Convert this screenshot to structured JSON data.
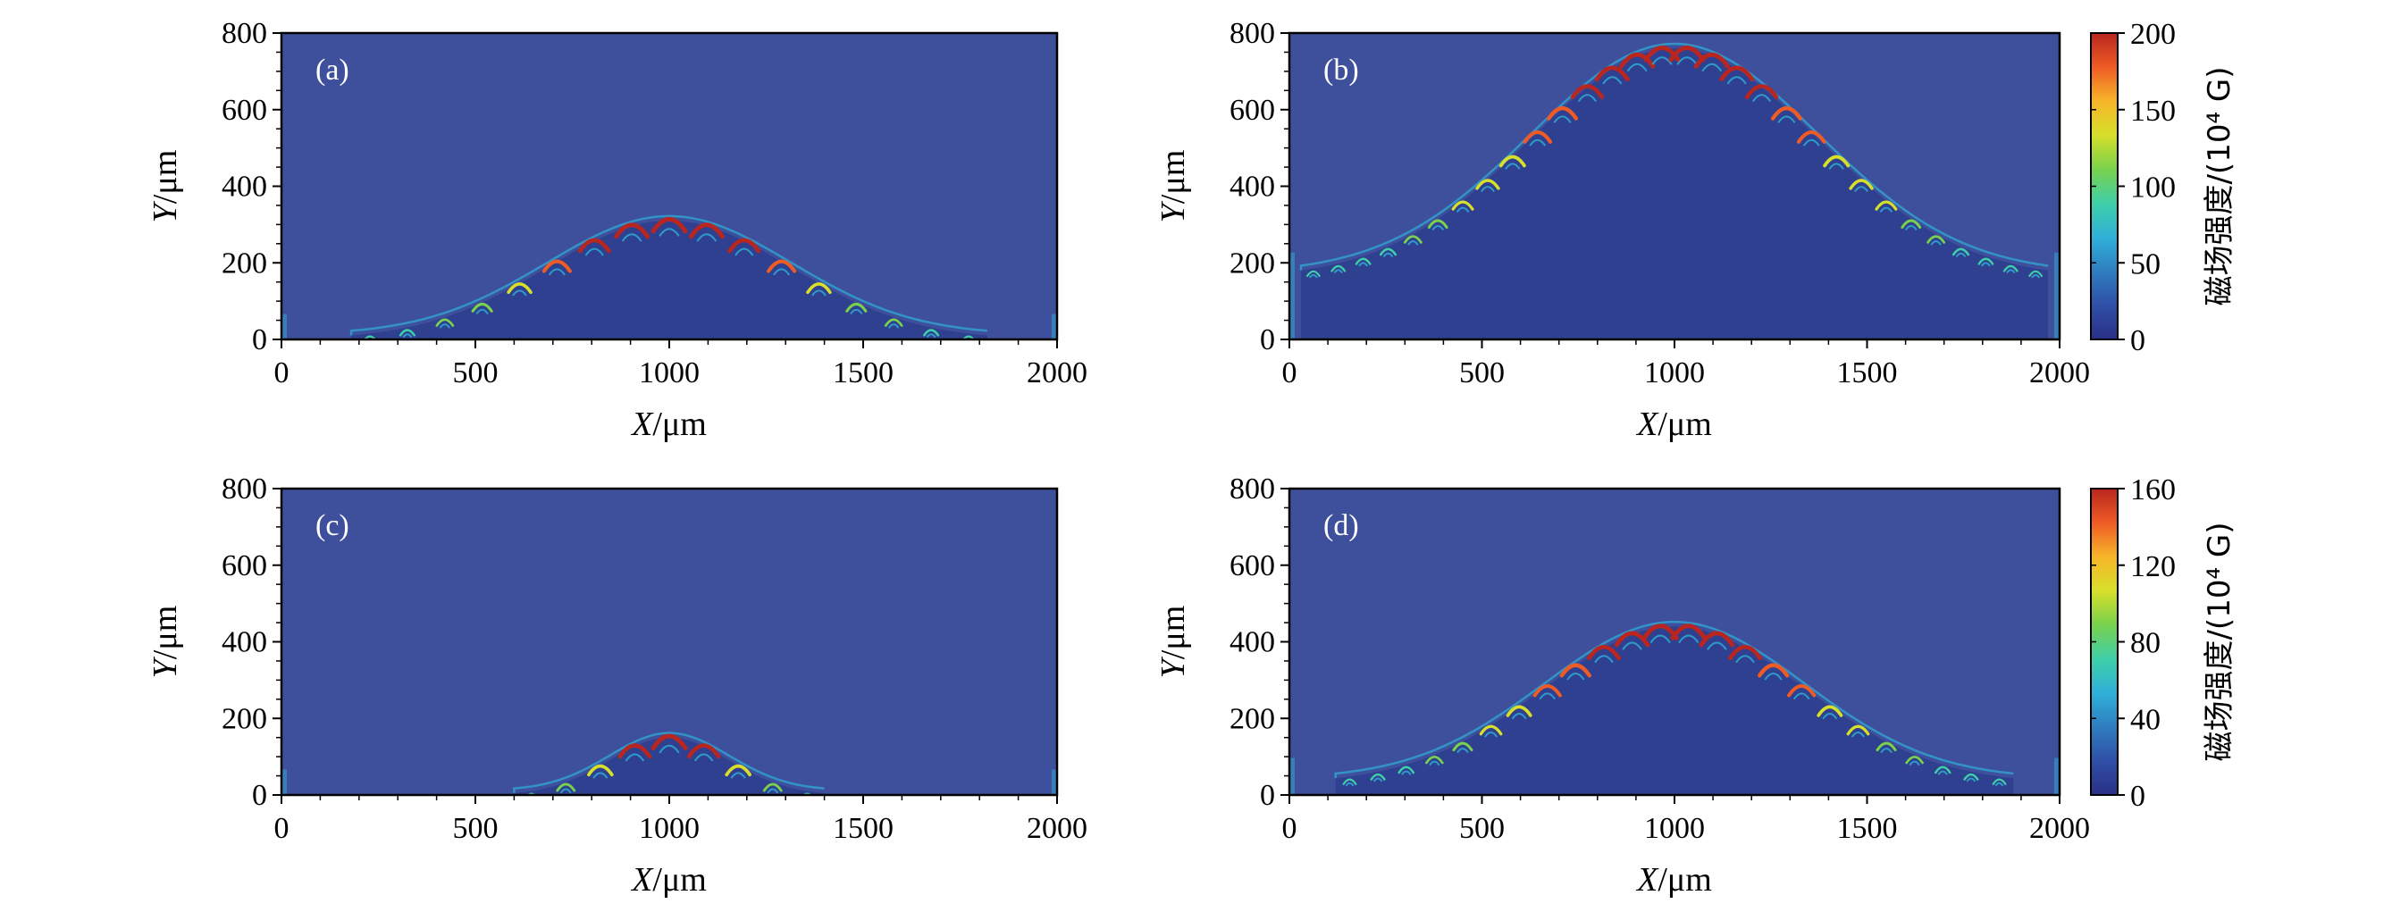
{
  "colors": {
    "background": "#3e4f9c",
    "frame": "#000000",
    "panel_label": "#ffffff",
    "colormap": [
      "#2b2f86",
      "#2f4fa6",
      "#2f7dbf",
      "#2fb0d8",
      "#3fcfa8",
      "#79d14d",
      "#d7df2a",
      "#f7b529",
      "#ef5b25",
      "#b8261f"
    ]
  },
  "chart_data": [
    {
      "panel": "(a)",
      "type": "heatmap",
      "xlabel_var": "X",
      "xlabel_unit": "/μm",
      "ylabel_var": "Y",
      "ylabel_unit": "/μm",
      "xlim": [
        0,
        2000
      ],
      "ylim": [
        0,
        800
      ],
      "xticks": [
        "0",
        "500",
        "1000",
        "1500",
        "2000"
      ],
      "yticks": [
        "0",
        "200",
        "400",
        "600",
        "800"
      ],
      "front": {
        "peak_y": 310,
        "base_y": 0,
        "left_x": 180,
        "right_x": 1820,
        "n_vortices": 17
      },
      "vmax": 200
    },
    {
      "panel": "(b)",
      "type": "heatmap",
      "xlabel_var": "X",
      "xlabel_unit": "/μm",
      "ylabel_var": "Y",
      "ylabel_unit": "/μm",
      "xlim": [
        0,
        2000
      ],
      "ylim": [
        0,
        800
      ],
      "xticks": [
        "0",
        "500",
        "1000",
        "1500",
        "2000"
      ],
      "yticks": [
        "0",
        "200",
        "400",
        "600",
        "800"
      ],
      "front": {
        "peak_y": 760,
        "base_y": 160,
        "left_x": 30,
        "right_x": 1970,
        "n_vortices": 30
      },
      "vmax": 200,
      "colorbar": {
        "label": "磁场强度/(10⁴ G)",
        "ticks": [
          "0",
          "50",
          "100",
          "150",
          "200"
        ],
        "range": [
          0,
          200
        ]
      }
    },
    {
      "panel": "(c)",
      "type": "heatmap",
      "xlabel_var": "X",
      "xlabel_unit": "/μm",
      "ylabel_var": "Y",
      "ylabel_unit": "/μm",
      "xlim": [
        0,
        2000
      ],
      "ylim": [
        0,
        800
      ],
      "xticks": [
        "0",
        "500",
        "1000",
        "1500",
        "2000"
      ],
      "yticks": [
        "0",
        "200",
        "400",
        "600",
        "800"
      ],
      "front": {
        "peak_y": 150,
        "base_y": 0,
        "left_x": 600,
        "right_x": 1400,
        "n_vortices": 9
      },
      "vmax": 160
    },
    {
      "panel": "(d)",
      "type": "heatmap",
      "xlabel_var": "X",
      "xlabel_unit": "/μm",
      "ylabel_var": "Y",
      "ylabel_unit": "/μm",
      "xlim": [
        0,
        2000
      ],
      "ylim": [
        0,
        800
      ],
      "xticks": [
        "0",
        "500",
        "1000",
        "1500",
        "2000"
      ],
      "yticks": [
        "0",
        "200",
        "400",
        "600",
        "800"
      ],
      "front": {
        "peak_y": 440,
        "base_y": 30,
        "left_x": 120,
        "right_x": 1880,
        "n_vortices": 24
      },
      "vmax": 160,
      "colorbar": {
        "label": "磁场强度/(10⁴ G)",
        "ticks": [
          "0",
          "40",
          "80",
          "120",
          "160"
        ],
        "range": [
          0,
          160
        ]
      }
    }
  ]
}
